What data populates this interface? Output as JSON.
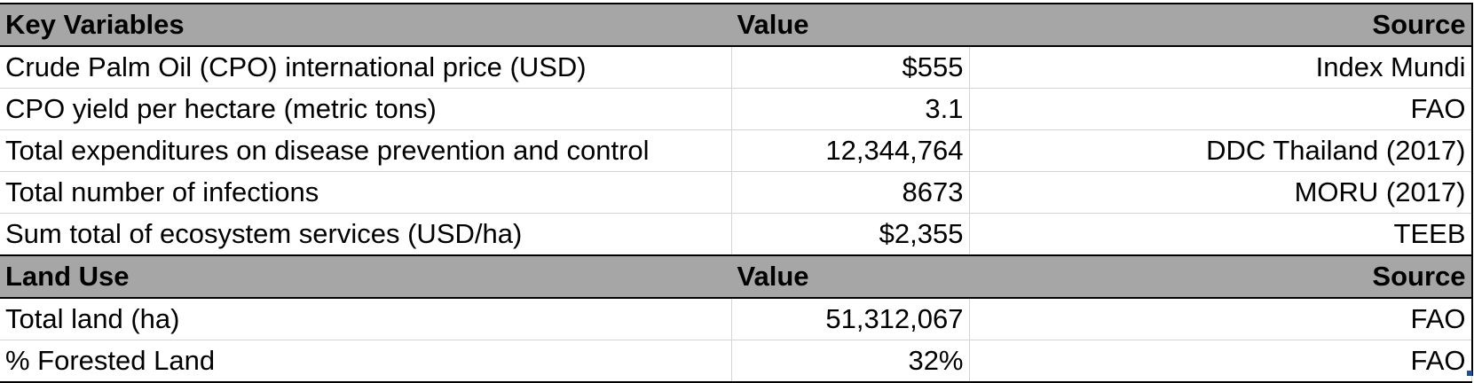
{
  "sections": [
    {
      "header": {
        "label": "Key Variables",
        "value": "Value",
        "source": "Source"
      },
      "rows": [
        {
          "label": "Crude Palm Oil (CPO) international price (USD)",
          "value": "$555",
          "source": "Index Mundi"
        },
        {
          "label": "CPO yield per hectare (metric tons)",
          "value": "3.1",
          "source": "FAO"
        },
        {
          "label": "Total expenditures on disease prevention and control",
          "value": "12,344,764",
          "source": "DDC Thailand (2017)"
        },
        {
          "label": "Total number of infections",
          "value": "8673",
          "source": "MORU (2017)"
        },
        {
          "label": "Sum total of ecosystem services (USD/ha)",
          "value": "$2,355",
          "source": "TEEB"
        }
      ]
    },
    {
      "header": {
        "label": "Land Use",
        "value": "Value",
        "source": "Source"
      },
      "rows": [
        {
          "label": "Total land (ha)",
          "value": "51,312,067",
          "source": "FAO"
        },
        {
          "label": "% Forested Land",
          "value": "32%",
          "source": "FAO"
        }
      ]
    }
  ],
  "colors": {
    "header_fill": "#a6a6a6",
    "gridline": "#d4d4d4",
    "border": "#000000",
    "selection_handle": "#1f4e9e"
  }
}
